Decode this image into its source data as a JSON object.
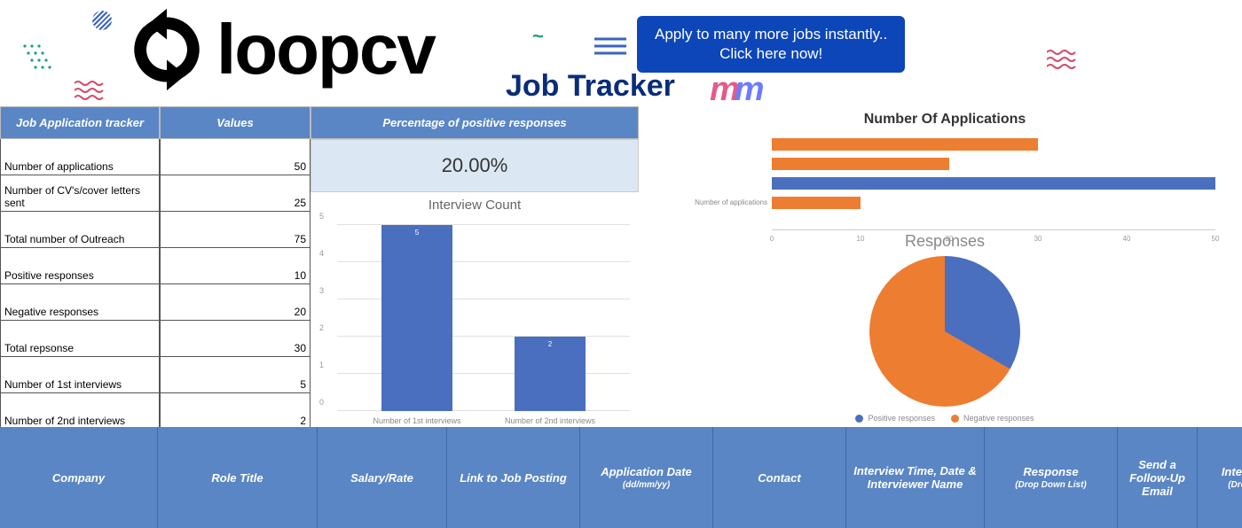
{
  "header": {
    "logo_text": "loopcv",
    "subtitle": "Job Tracker",
    "cta_line1": "Apply to many more jobs instantly..",
    "cta_line2": "Click here now!"
  },
  "colors": {
    "header_blue": "#5a86c5",
    "cta_blue": "#0d46b8",
    "bar_blue": "#4a6fbf",
    "series_blue": "#4a6fbf",
    "series_orange": "#ed7d31",
    "pct_bg": "#dbe7f3",
    "grid": "#e0e0e0"
  },
  "table": {
    "header_label": "Job Application tracker",
    "header_values": "Values",
    "rows": [
      {
        "label": "Number of applications",
        "value": "50"
      },
      {
        "label": "Number of CV's/cover letters sent",
        "value": "25"
      },
      {
        "label": "Total number of Outreach",
        "value": "75"
      },
      {
        "label": "Positive responses",
        "value": "10"
      },
      {
        "label": "Negative responses",
        "value": "20"
      },
      {
        "label": "Total repsonse",
        "value": "30"
      },
      {
        "label": "Number of 1st interviews",
        "value": "5"
      },
      {
        "label": "Number of 2nd interviews",
        "value": "2"
      }
    ]
  },
  "percentage": {
    "header": "Percentage of positive responses",
    "value": "20.00%"
  },
  "interview_chart": {
    "title": "Interview Count",
    "type": "bar",
    "ymax": 5,
    "ytick_step": 1,
    "categories": [
      "Number of 1st interviews",
      "Number of 2nd interviews"
    ],
    "values": [
      5,
      2
    ],
    "bar_color": "#4a6fbf"
  },
  "applications_chart": {
    "title": "Number Of Applications",
    "type": "hbar",
    "xmax": 50,
    "xtick_step": 10,
    "series": [
      {
        "label": "",
        "value": 30,
        "color": "#ed7d31"
      },
      {
        "label": "",
        "value": 20,
        "color": "#ed7d31"
      },
      {
        "label": "",
        "value": 50,
        "color": "#4a6fbf"
      },
      {
        "label": "Number of applications",
        "value": 10,
        "color": "#ed7d31"
      }
    ]
  },
  "responses_chart": {
    "title": "Responses",
    "type": "pie",
    "slices": [
      {
        "label": "Positive responses",
        "value": 10,
        "color": "#4a6fbf"
      },
      {
        "label": "Negative responses",
        "value": 20,
        "color": "#ed7d31"
      }
    ],
    "positive_deg": 120
  },
  "bottom_columns": [
    {
      "title": "Company",
      "sub": ""
    },
    {
      "title": "Role Title",
      "sub": ""
    },
    {
      "title": "Salary/Rate",
      "sub": ""
    },
    {
      "title": "Link to Job Posting",
      "sub": ""
    },
    {
      "title": "Application Date",
      "sub": "(dd/mm/yy)"
    },
    {
      "title": "Contact",
      "sub": ""
    },
    {
      "title": "Interview Time, Date & Interviewer Name",
      "sub": ""
    },
    {
      "title": "Response",
      "sub": "(Drop Down List)"
    },
    {
      "title": "Send a Follow-Up Email",
      "sub": ""
    },
    {
      "title": "Interview Stage",
      "sub": "(Drop Down List)"
    }
  ]
}
